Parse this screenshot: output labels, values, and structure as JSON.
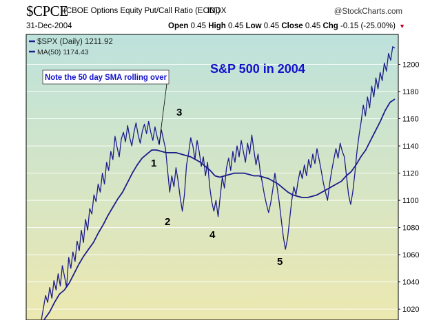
{
  "header": {
    "symbol": "$CPCE",
    "description": "(CBOE Options Equity Put/Call Ratio (EOD))",
    "exchange": "INDX",
    "brand": "@StockCharts.com",
    "date": "31-Dec-2004",
    "open_label": "Open",
    "open_value": "0.45",
    "high_label": "High",
    "high_value": "0.45",
    "low_label": "Low",
    "low_value": "0.45",
    "close_label": "Close",
    "close_value": "0.45",
    "chg_label": "Chg",
    "chg_value": "-0.15 (-25.00%)",
    "down_marker": "▼"
  },
  "chart_data": {
    "type": "line",
    "title": "S&P 500 in 2004",
    "ylim": [
      1012,
      1222
    ],
    "y_ticks": [
      1020,
      1040,
      1060,
      1080,
      1100,
      1120,
      1140,
      1160,
      1180,
      1200
    ],
    "grid": true,
    "legend_position": "top-left",
    "background_top": "#bde2dc",
    "background_bottom": "#ece8b0",
    "series": [
      {
        "name": "$SPX (Daily) 1211.92",
        "color": "#1c1c8a",
        "values": [
          1012,
          1021,
          1030,
          1025,
          1036,
          1028,
          1041,
          1034,
          1046,
          1037,
          1052,
          1044,
          1036,
          1058,
          1050,
          1062,
          1055,
          1070,
          1063,
          1078,
          1069,
          1086,
          1078,
          1094,
          1090,
          1104,
          1099,
          1112,
          1106,
          1120,
          1112,
          1128,
          1122,
          1136,
          1130,
          1147,
          1139,
          1132,
          1145,
          1150,
          1143,
          1155,
          1146,
          1140,
          1150,
          1157,
          1148,
          1142,
          1151,
          1156,
          1149,
          1158,
          1150,
          1144,
          1154,
          1147,
          1141,
          1152,
          1145,
          1138,
          1122,
          1106,
          1118,
          1110,
          1124,
          1114,
          1102,
          1092,
          1104,
          1126,
          1135,
          1146,
          1140,
          1130,
          1144,
          1136,
          1125,
          1132,
          1118,
          1128,
          1110,
          1099,
          1092,
          1100,
          1088,
          1103,
          1117,
          1109,
          1124,
          1131,
          1122,
          1136,
          1128,
          1140,
          1132,
          1144,
          1136,
          1128,
          1142,
          1134,
          1148,
          1137,
          1126,
          1134,
          1121,
          1113,
          1104,
          1097,
          1091,
          1098,
          1108,
          1120,
          1110,
          1099,
          1086,
          1073,
          1064,
          1072,
          1086,
          1100,
          1110,
          1104,
          1114,
          1122,
          1116,
          1126,
          1118,
          1130,
          1124,
          1134,
          1127,
          1138,
          1130,
          1122,
          1113,
          1106,
          1100,
          1112,
          1122,
          1130,
          1138,
          1131,
          1142,
          1136,
          1132,
          1118,
          1104,
          1097,
          1106,
          1120,
          1136,
          1148,
          1158,
          1170,
          1162,
          1176,
          1168,
          1184,
          1176,
          1190,
          1182,
          1194,
          1188,
          1201,
          1195,
          1208,
          1203,
          1213,
          1211.92
        ]
      },
      {
        "name": "MA(50) 1174.43",
        "color": "#1c1c8a",
        "values": [
          1007,
          1013,
          1018,
          1025,
          1031,
          1034,
          1039,
          1046,
          1053,
          1059,
          1064,
          1069,
          1076,
          1082,
          1089,
          1095,
          1101,
          1106,
          1113,
          1120,
          1126,
          1131,
          1134,
          1137,
          1137,
          1136,
          1135,
          1135,
          1135,
          1134,
          1133,
          1132,
          1130,
          1128,
          1125,
          1122,
          1118,
          1117,
          1118,
          1119,
          1120,
          1120,
          1120,
          1119,
          1118,
          1118,
          1117,
          1116,
          1114,
          1112,
          1109,
          1106,
          1104,
          1103,
          1102,
          1102,
          1103,
          1104,
          1106,
          1108,
          1110,
          1112,
          1114,
          1118,
          1121,
          1126,
          1132,
          1137,
          1144,
          1151,
          1158,
          1166,
          1172,
          1174.43
        ]
      }
    ],
    "annotations": [
      {
        "text": "Note the 50 day SMA rolling over",
        "type": "callout"
      },
      {
        "text": "1"
      },
      {
        "text": "2"
      },
      {
        "text": "3"
      },
      {
        "text": "4"
      },
      {
        "text": "5"
      }
    ]
  }
}
